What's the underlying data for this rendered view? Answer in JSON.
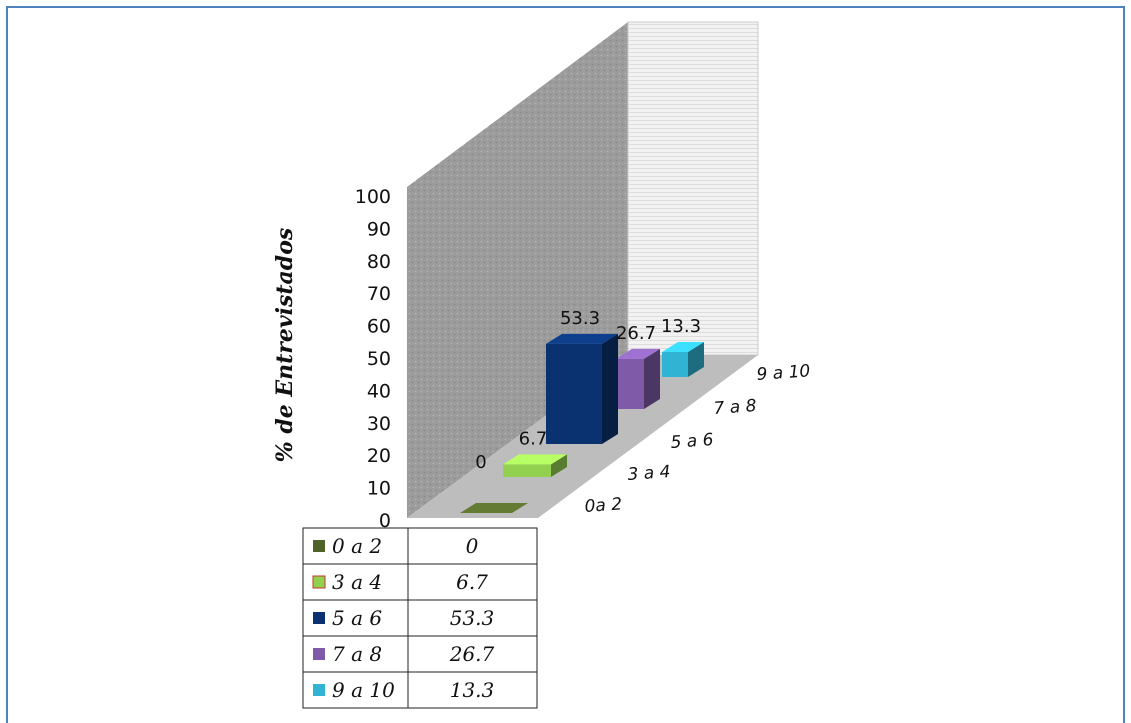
{
  "chart_data": {
    "type": "bar",
    "title": "",
    "xlabel": "",
    "ylabel": "% de Entrevistados",
    "ylim": [
      0,
      100
    ],
    "y_ticks": [
      "0",
      "10",
      "20",
      "30",
      "40",
      "50",
      "60",
      "70",
      "80",
      "90",
      "100"
    ],
    "categories": [
      "0a 2",
      "3 a 4",
      "5 a 6",
      "7 a 8",
      "9 a 10"
    ],
    "values": [
      0,
      6.7,
      53.3,
      26.7,
      13.3
    ],
    "data_labels": [
      "0",
      "6.7",
      "53.3",
      "26.7",
      "13.3"
    ],
    "colors": [
      "#4f6228",
      "#92d050",
      "#0b3270",
      "#7f5aa8",
      "#31b4d4"
    ],
    "table": {
      "rows": [
        {
          "label": "0 a 2",
          "value": "0"
        },
        {
          "label": "3 a 4",
          "value": "6.7"
        },
        {
          "label": "5 a 6",
          "value": "53.3"
        },
        {
          "label": "7 a 8",
          "value": "26.7"
        },
        {
          "label": "9 a 10",
          "value": "13.3"
        }
      ]
    },
    "style": "3d-column",
    "grid": false
  }
}
